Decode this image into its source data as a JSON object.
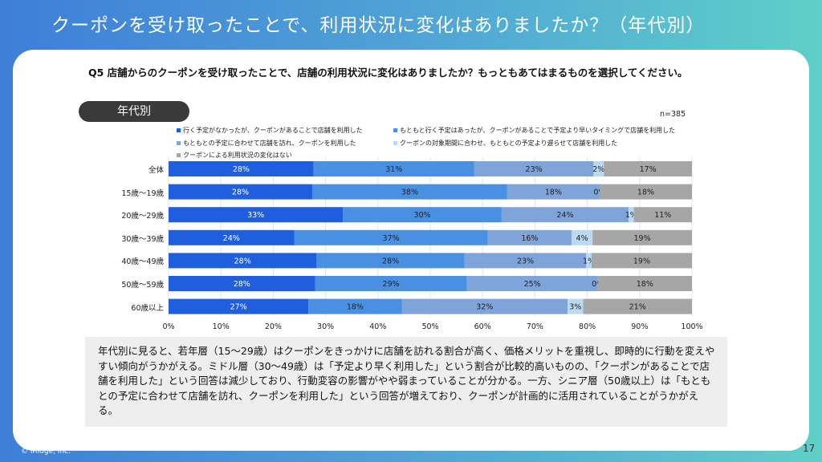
{
  "header": {
    "title": "クーポンを受け取ったことで、利用状況に変化はありましたか？（年代別）"
  },
  "question": "Q5 店舗からのクーポンを受け取ったことで、店舗の利用状況に変化はありましたか？もっともあてはまるものを選択してください。",
  "tag": "年代別",
  "sample": "n=385",
  "chart_data": {
    "type": "bar",
    "orientation": "horizontal-stacked-100",
    "categories": [
      "全体",
      "15歳～19歳",
      "20歳～29歳",
      "30歳～39歳",
      "40歳～49歳",
      "50歳～59歳",
      "60歳以上"
    ],
    "series": [
      {
        "name": "行く予定がなかったが、クーポンがあることで店舗を利用した",
        "color": "#1f5fde",
        "values": [
          28,
          28,
          33,
          24,
          28,
          28,
          27
        ]
      },
      {
        "name": "もともと行く予定はあったが、クーポンがあることで予定より早いタイミングで店舗を利用した",
        "color": "#4a90e2",
        "values": [
          31,
          38,
          30,
          37,
          28,
          29,
          18
        ]
      },
      {
        "name": "もともとの予定に合わせて店舗を訪れ、クーポンを利用した",
        "color": "#7ea4da",
        "values": [
          23,
          18,
          24,
          16,
          23,
          25,
          32
        ]
      },
      {
        "name": "クーポンの対象期間に合わせ、もともとの予定より遅らせて店舗を利用した",
        "color": "#bcd9f2",
        "values": [
          2,
          0,
          1,
          4,
          1,
          0,
          3
        ]
      },
      {
        "name": "クーポンによる利用状況の変化はない",
        "color": "#a6a6a6",
        "values": [
          17,
          18,
          11,
          19,
          19,
          18,
          21
        ]
      }
    ],
    "x_ticks": [
      "0%",
      "10%",
      "20%",
      "30%",
      "40%",
      "50%",
      "60%",
      "70%",
      "80%",
      "90%",
      "100%"
    ],
    "xlim": [
      0,
      100
    ],
    "label_suffix": "%"
  },
  "summary": "年代別に見ると、若年層（15～29歳）はクーポンをきっかけに店舗を訪れる割合が高く、価格メリットを重視し、即時的に行動を変えやすい傾向がうかがえる。ミドル層（30～49歳）は「予定より早く利用した」という割合が比較的高いものの、「クーポンがあることで店舗を利用した」という回答は減少しており、行動変容の影響がやや弱まっていることが分かる。一方、シニア層（50歳以上）は「もともとの予定に合わせて店舗を訪れ、クーポンを利用した」という回答が増えており、クーポンが計画的に活用されていることがうかがえる。",
  "footer": {
    "copyright": "© iRidge, Inc.",
    "page": "17"
  }
}
